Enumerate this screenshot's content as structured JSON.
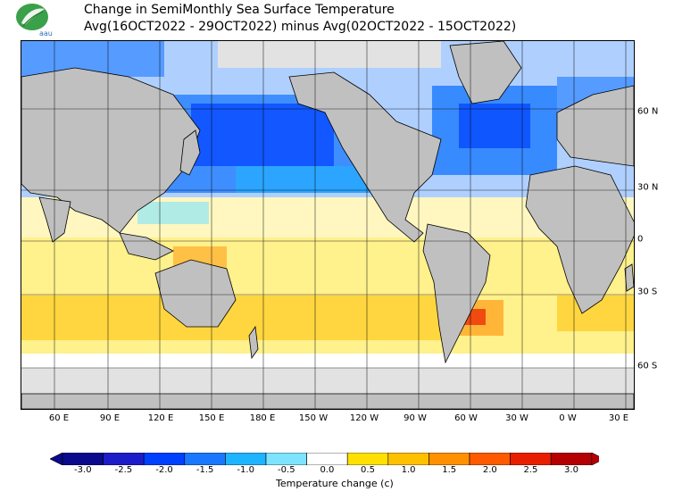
{
  "title": {
    "line1": "Change in SemiMonthly Sea Surface Temperature",
    "line2": "Avg(16OCT2022 - 29OCT2022) minus Avg(02OCT2022 - 15OCT2022)"
  },
  "logo": {
    "text": "aau",
    "icon": "leaf-logo-icon"
  },
  "lon_ticks": [
    "60 E",
    "90 E",
    "120 E",
    "150 E",
    "180 E",
    "150 W",
    "120 W",
    "90 W",
    "60 W",
    "30 W",
    "0 W",
    "30 E"
  ],
  "lat_ticks": [
    "60 N",
    "30 N",
    "0",
    "30 S",
    "60 S"
  ],
  "colorbar": {
    "title": "Temperature change  (c)",
    "ticks": [
      "-3.0",
      "-2.5",
      "-2.0",
      "-1.5",
      "-1.0",
      "-0.5",
      "0.0",
      "0.5",
      "1.0",
      "1.5",
      "2.0",
      "2.5",
      "3.0"
    ],
    "colors": [
      "#0a0a8c",
      "#1c1cc8",
      "#0040ff",
      "#1a78ff",
      "#1eb4ff",
      "#7de3ff",
      "#ffffff",
      "#ffe000",
      "#ffc000",
      "#ff9000",
      "#ff5a00",
      "#e81e00",
      "#b40000"
    ]
  },
  "colors": {
    "land": "#c0c0c0",
    "ice": "#e2e2e2",
    "border": "#000000"
  }
}
